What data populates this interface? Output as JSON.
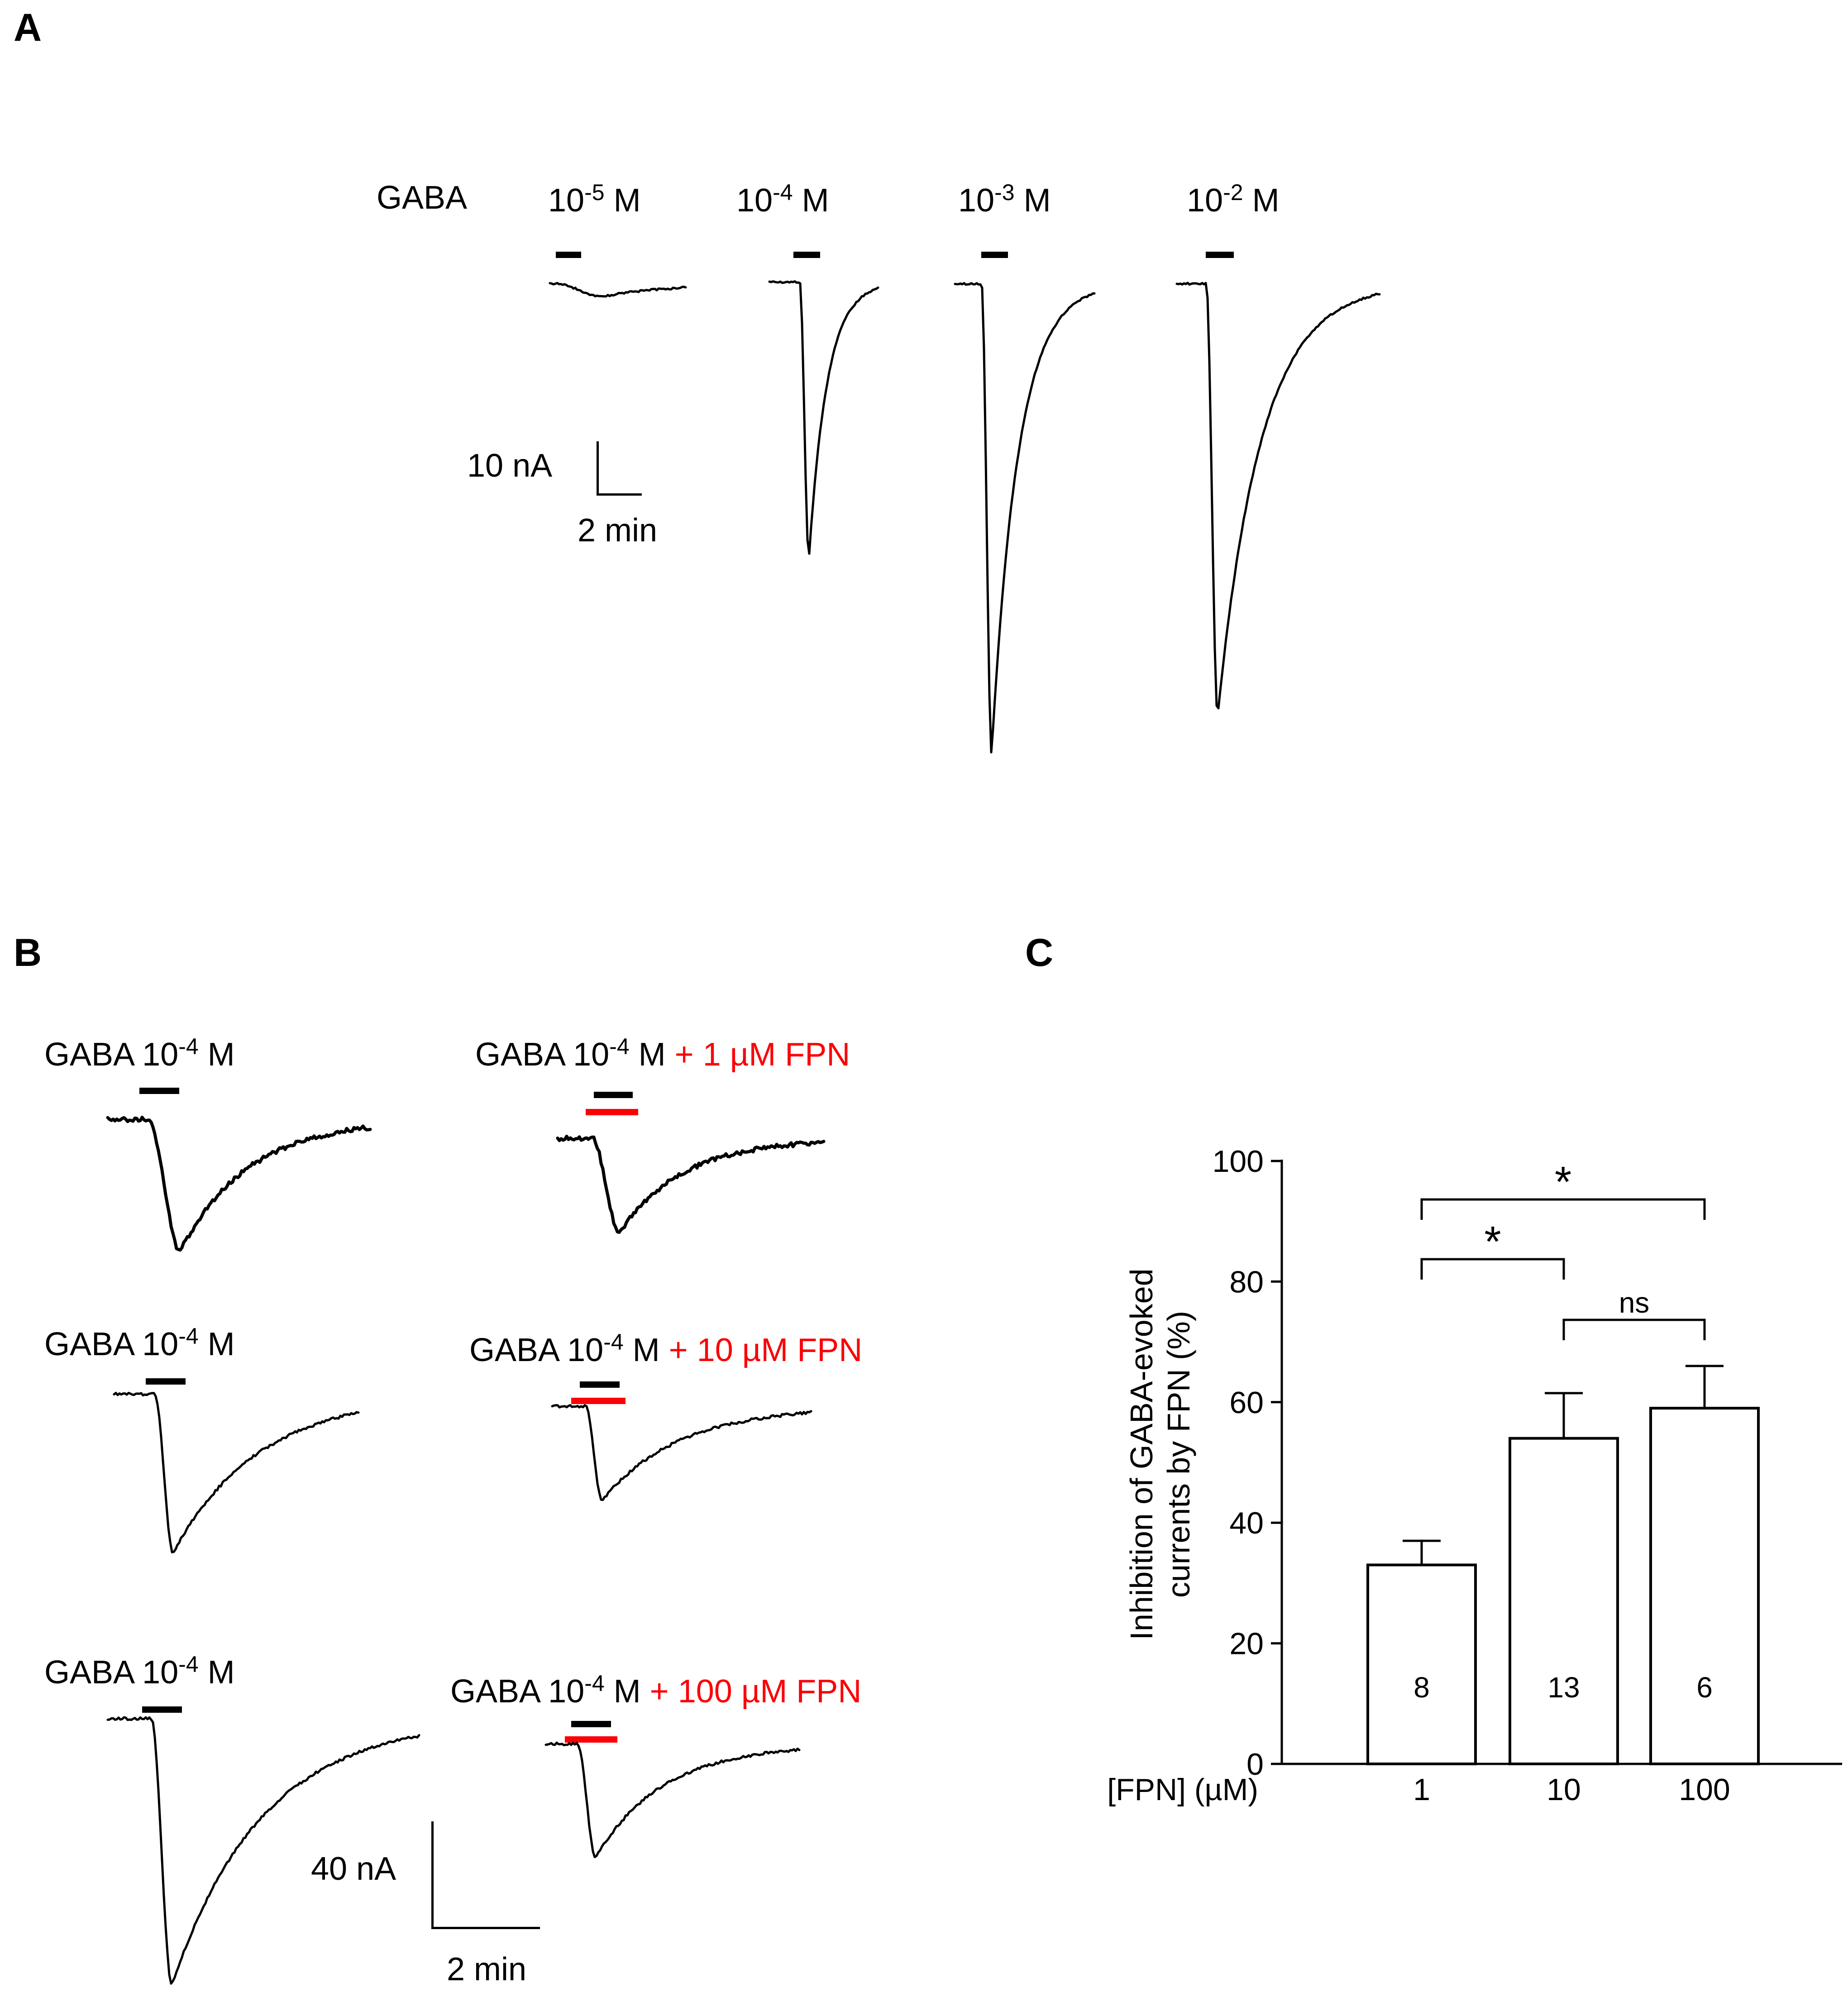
{
  "colors": {
    "red": "#fb0006",
    "black": "#000000"
  },
  "panel_a": {
    "label": "A",
    "gaba_label": "GABA",
    "concentrations": [
      {
        "base": "10",
        "exp": "-5",
        "suffix": " M"
      },
      {
        "base": "10",
        "exp": "-4",
        "suffix": " M"
      },
      {
        "base": "10",
        "exp": "-3",
        "suffix": " M"
      },
      {
        "base": "10",
        "exp": "-2",
        "suffix": " M"
      }
    ],
    "scalebar": {
      "current": "10 nA",
      "time": "2 min"
    },
    "traces": [
      {
        "amp_na": 2.4,
        "onset": 0.05,
        "fall": 100,
        "tau": 150,
        "noise": 2,
        "stroke": 5
      },
      {
        "amp_na": 52,
        "onset": 0.28,
        "fall": 20,
        "tau": 40,
        "noise": 2,
        "stroke": 5
      },
      {
        "amp_na": 88,
        "onset": 0.19,
        "fall": 22,
        "tau": 58,
        "noise": 2,
        "stroke": 5
      },
      {
        "amp_na": 81,
        "onset": 0.145,
        "fall": 25,
        "tau": 95,
        "noise": 2,
        "stroke": 5
      }
    ]
  },
  "panel_b": {
    "label": "B",
    "scalebar": {
      "current": "40 nA",
      "time": "2 min"
    },
    "rows": [
      {
        "control": {
          "prefix": "GABA 10",
          "exp": "-4",
          "suffix": " M"
        },
        "treated": {
          "prefix": "GABA 10",
          "exp": "-4",
          "suffix": " M",
          "red": " + 1 µM FPN"
        },
        "control_trace": {
          "amp_na": 49,
          "onset": 0.155,
          "fall": 70,
          "tau": 150,
          "noise": 5,
          "stroke": 7
        },
        "treated_trace": {
          "amp_na": 35,
          "onset": 0.13,
          "fall": 60,
          "tau": 140,
          "noise": 5,
          "stroke": 7
        }
      },
      {
        "control": {
          "prefix": "GABA 10",
          "exp": "-4",
          "suffix": " M"
        },
        "treated": {
          "prefix": "GABA 10",
          "exp": "-4",
          "suffix": " M",
          "red": " + 10 µM FPN"
        },
        "control_trace": {
          "amp_na": 59,
          "onset": 0.167,
          "fall": 40,
          "tau": 190,
          "noise": 3,
          "stroke": 5
        },
        "treated_trace": {
          "amp_na": 35,
          "onset": 0.13,
          "fall": 35,
          "tau": 170,
          "noise": 3,
          "stroke": 5
        }
      },
      {
        "control": {
          "prefix": "GABA 10",
          "exp": "-4",
          "suffix": " M"
        },
        "treated": {
          "prefix": "GABA 10",
          "exp": "-4",
          "suffix": " M",
          "red": " + 100 µM FPN"
        },
        "control_trace": {
          "amp_na": 99,
          "onset": 0.14,
          "fall": 45,
          "tau": 200,
          "noise": 3,
          "stroke": 5
        },
        "treated_trace": {
          "amp_na": 42,
          "onset": 0.125,
          "fall": 40,
          "tau": 150,
          "noise": 3,
          "stroke": 5
        }
      }
    ]
  },
  "panel_c": {
    "label": "C"
  },
  "chart_data": {
    "type": "bar",
    "title": "",
    "categories": [
      "1",
      "10",
      "100"
    ],
    "values": [
      33,
      54,
      59
    ],
    "errors_plus": [
      4,
      7.5,
      7
    ],
    "n_labels": [
      "8",
      "13",
      "6"
    ],
    "xlabel": "[FPN] (µM)",
    "ylabel": "Inhibition of GABA-evoked currents by FPN (%)",
    "ylabel_lines": [
      "Inhibition of GABA-evoked",
      "currents by FPN (%)"
    ],
    "ylim": [
      0,
      100
    ],
    "yticks": [
      0,
      20,
      40,
      60,
      80,
      100
    ],
    "grid": false,
    "bar_fill": "#ffffff",
    "bar_stroke": "#000000",
    "significance": [
      {
        "from": 0,
        "to": 2,
        "label": "*"
      },
      {
        "from": 0,
        "to": 1,
        "label": "*"
      },
      {
        "from": 1,
        "to": 2,
        "label": "ns"
      }
    ]
  }
}
